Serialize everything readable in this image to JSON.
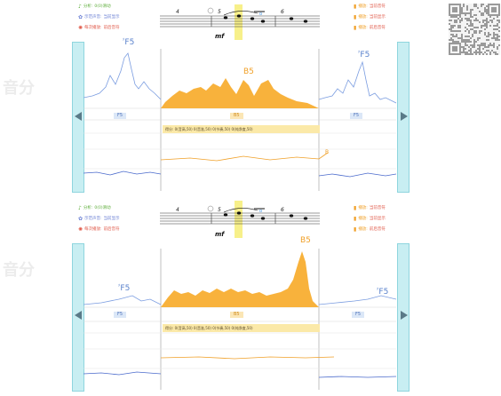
{
  "legend_left": [
    {
      "icon": "♪",
      "label": "分析:",
      "value": "0(0)滑动",
      "color": "#5fae3c"
    },
    {
      "icon": "✿",
      "label": "示范声音:",
      "value": "当前显示",
      "color": "#6a7fd4"
    },
    {
      "icon": "✺",
      "label": "每次播放:",
      "value": "前后音符",
      "color": "#e05a4a"
    }
  ],
  "legend_right": [
    {
      "icon": "▮",
      "label": "播放:",
      "value": "当前音符",
      "color": "#f0a028"
    },
    {
      "icon": "▮",
      "label": "播放:",
      "value": "当前显示",
      "color": "#f0a028"
    },
    {
      "icon": "▮",
      "label": "播放:",
      "value": "前后音符",
      "color": "#f0a028"
    }
  ],
  "score": {
    "measure_a": "4",
    "measure_b": "5",
    "measure_c": "6",
    "dynamic": "mf"
  },
  "panels": [
    {
      "peak_left": {
        "sharp": "♯",
        "name": "F5"
      },
      "peak_center": {
        "name": "B5"
      },
      "peak_right": {
        "sharp": "♯",
        "name": "F5"
      },
      "tag_left": "F5",
      "tag_center": "B5",
      "tag_right": "F5",
      "score_line": "得分: 0(音高,50) 0(音准,50) 0(节奏,50) 0(纯净度,50)",
      "pitch_marker": "B"
    },
    {
      "peak_left": {
        "sharp": "♯",
        "name": "F5"
      },
      "peak_center": {
        "name": "B5"
      },
      "peak_right": {
        "sharp": "♯",
        "name": "F5"
      },
      "tag_left": "F5",
      "tag_center": "B5",
      "tag_right": "F5",
      "score_line": "得分: 0(音高,50) 0(音准,50) 0(节奏,50) 0(纯净度,50)",
      "pitch_marker": ""
    }
  ],
  "ghost_text": "音分"
}
